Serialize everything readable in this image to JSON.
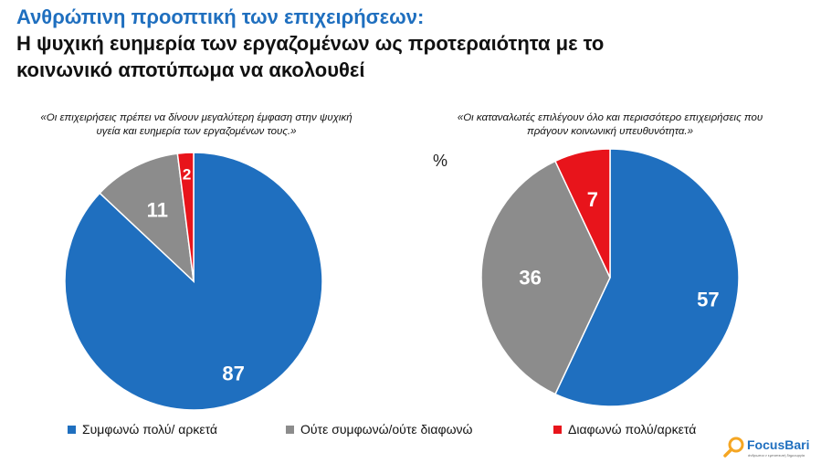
{
  "title": {
    "line1": "Ανθρώπινη προοπτική των επιχειρήσεων:",
    "line2": "Η ψυχική ευημερία των εργαζομένων ως προτεραιότητα με το",
    "line3": "κοινωνικό αποτύπωμα να ακολουθεί"
  },
  "percent_label": "%",
  "chart_data": [
    {
      "type": "pie",
      "title": "«Οι επιχειρήσεις πρέπει να δίνουν μεγαλύτερη έμφαση στην ψυχική υγεία και ευημερία των εργαζομένων τους.»",
      "categories": [
        "Συμφωνώ πολύ/ αρκετά",
        "Ούτε συμφωνώ/ούτε διαφωνώ",
        "Διαφωνώ πολύ/αρκετά"
      ],
      "values": [
        87,
        11,
        2
      ],
      "colors": [
        "#1f6fbf",
        "#8c8c8c",
        "#e8141b"
      ]
    },
    {
      "type": "pie",
      "title": "«Οι καταναλωτές επιλέγουν όλο και περισσότερο επιχειρήσεις που πράγουν κοινωνική υπευθυνότητα.»",
      "categories": [
        "Συμφωνώ πολύ/ αρκετά",
        "Ούτε συμφωνώ/ούτε διαφωνώ",
        "Διαφωνώ πολύ/αρκετά"
      ],
      "values": [
        57,
        36,
        7
      ],
      "colors": [
        "#1f6fbf",
        "#8c8c8c",
        "#e8141b"
      ]
    }
  ],
  "legend": [
    {
      "label": "Συμφωνώ πολύ/ αρκετά",
      "color": "#1f6fbf"
    },
    {
      "label": "Ούτε συμφωνώ/ούτε διαφωνώ",
      "color": "#8c8c8c"
    },
    {
      "label": "Διαφωνώ πολύ/αρκετά",
      "color": "#e8141b"
    }
  ],
  "logo": {
    "text": "FocusBari",
    "tagline": "άνθρωποι ν εμπιστευτή δημιουργία",
    "icon": "magnifier-icon"
  }
}
